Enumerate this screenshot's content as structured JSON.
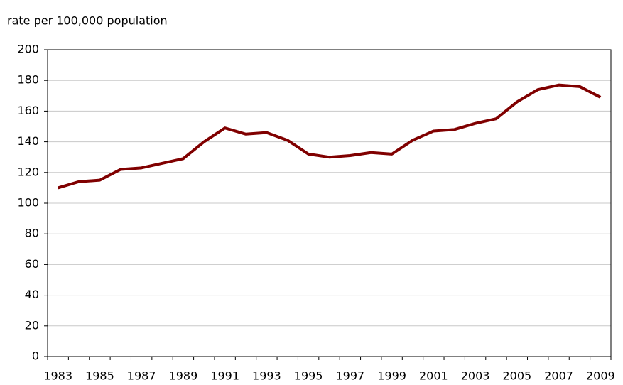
{
  "chart_data": {
    "type": "line",
    "y_label": "rate per 100,000 population",
    "categories": [
      "1983",
      null,
      "1985",
      null,
      "1987",
      null,
      "1989",
      null,
      "1991",
      null,
      "1993",
      null,
      "1995",
      null,
      "1997",
      null,
      "1999",
      null,
      "2001",
      null,
      "2003",
      null,
      "2005",
      null,
      "2007",
      null,
      "2009"
    ],
    "series": [
      {
        "color": "#800000",
        "values": [
          110,
          114,
          115,
          122,
          123,
          126,
          129,
          140,
          149,
          145,
          146,
          141,
          132,
          130,
          131,
          133,
          132,
          141,
          147,
          148,
          152,
          155,
          166,
          174,
          177,
          176,
          169
        ]
      }
    ],
    "ylim": [
      0,
      200
    ],
    "yticks": [
      0,
      20,
      40,
      60,
      80,
      100,
      120,
      140,
      160,
      180,
      200
    ],
    "grid": true
  }
}
